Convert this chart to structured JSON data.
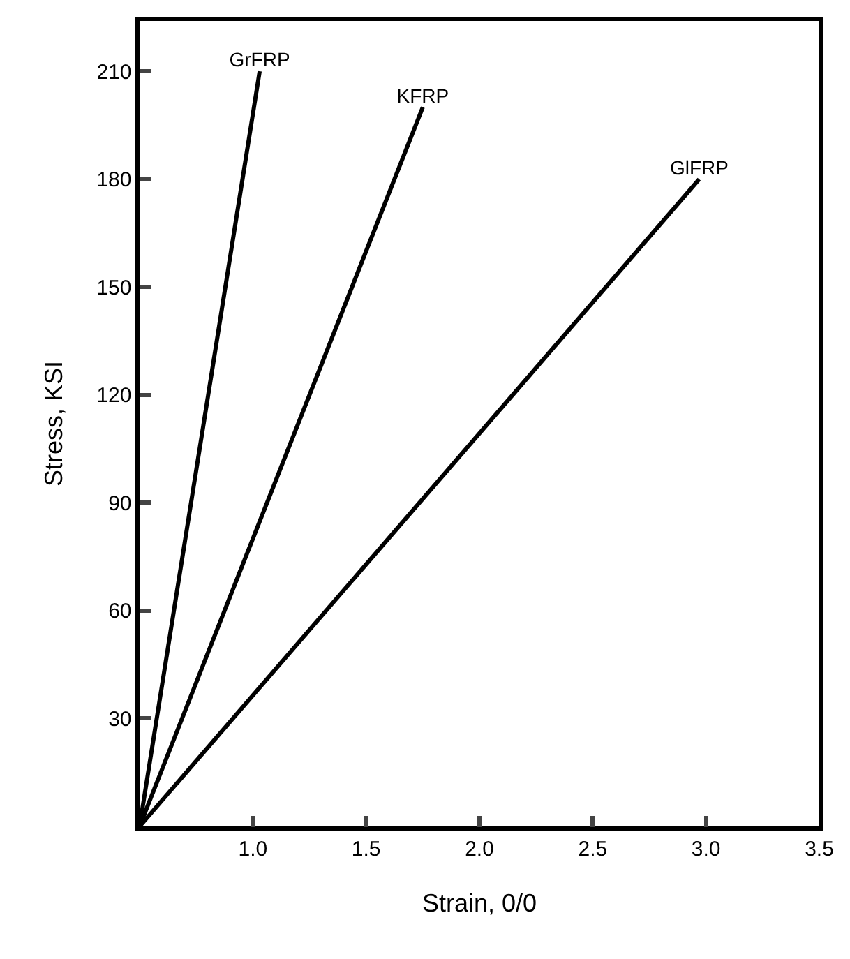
{
  "chart_data": {
    "type": "line",
    "xlabel": "Strain, 0/0",
    "ylabel": "Stress, KSI",
    "xlim": [
      0.5,
      3.5
    ],
    "ylim": [
      0,
      224
    ],
    "xticks": [
      {
        "value": 1,
        "label": "1.0"
      },
      1.5,
      {
        "value": 2,
        "label": "2.0"
      },
      2.5,
      {
        "value": 3,
        "label": "3.0"
      },
      3.5
    ],
    "yticks": [
      30,
      60,
      90,
      120,
      150,
      180,
      210
    ],
    "grid": false,
    "legend": false,
    "marker": "none",
    "line_style": "solid",
    "series": [
      {
        "name": "GrFRP",
        "color": "#000000",
        "x": [
          0.5,
          1.03
        ],
        "values": [
          0,
          210
        ]
      },
      {
        "name": "KFRP",
        "color": "#000000",
        "x": [
          0.5,
          1.75
        ],
        "values": [
          0,
          200
        ]
      },
      {
        "name": "GlFRP",
        "color": "#000000",
        "x": [
          0.5,
          2.97
        ],
        "values": [
          0,
          180
        ]
      }
    ]
  }
}
